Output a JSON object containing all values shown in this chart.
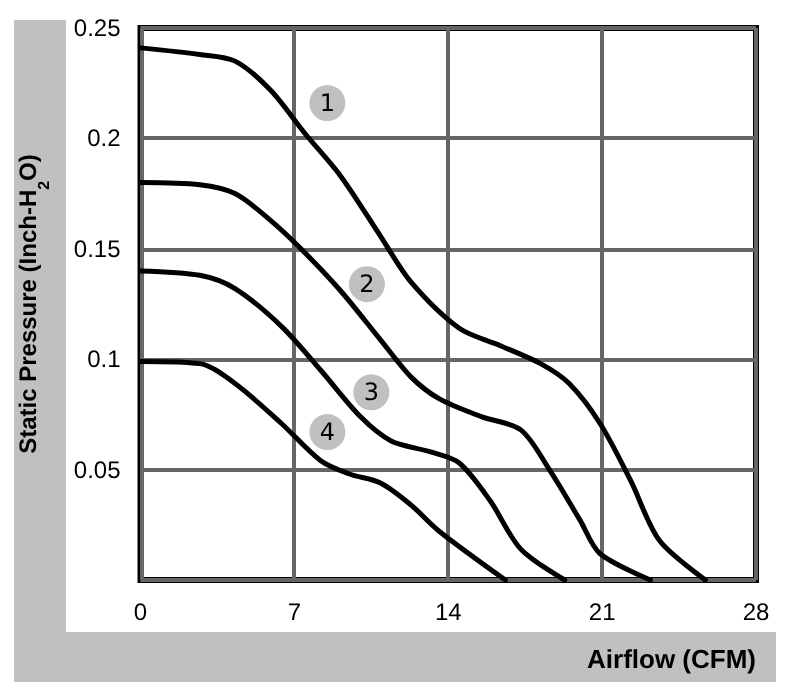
{
  "chart_data": {
    "type": "line",
    "xlabel": "Airflow (CFM)",
    "ylabel": "Static Pressure (Inch-H$_{2}$O)",
    "xlim": [
      0,
      28
    ],
    "xticks": [
      0,
      7,
      14,
      21,
      28
    ],
    "ylim": [
      0,
      0.25
    ],
    "yticks": [
      {
        "value": 0,
        "label": null
      },
      0.05,
      0.1,
      0.15,
      0.2,
      0.25
    ],
    "grid": true,
    "marker": "none",
    "line_style": "solid",
    "series": [
      {
        "color": "#000000",
        "x": [
          0,
          2.7,
          4.3,
          5.9,
          7.5,
          9.1,
          10.9,
          12.3,
          14.5,
          16.4,
          18.2,
          19.5,
          20.9,
          22.3,
          23.6,
          25.7
        ],
        "values": [
          0.241,
          0.238,
          0.235,
          0.222,
          0.202,
          0.183,
          0.156,
          0.135,
          0.114,
          0.106,
          0.098,
          0.089,
          0.071,
          0.045,
          0.018,
          0
        ]
      },
      {
        "color": "#000000",
        "x": [
          0,
          2.7,
          4.3,
          5.9,
          7.3,
          9.1,
          10.9,
          12.3,
          13.6,
          15.5,
          17.3,
          18.6,
          20,
          20.9,
          23.2
        ],
        "values": [
          0.18,
          0.179,
          0.175,
          0.163,
          0.15,
          0.131,
          0.109,
          0.092,
          0.082,
          0.074,
          0.068,
          0.05,
          0.027,
          0.012,
          0
        ]
      },
      {
        "color": "#000000",
        "x": [
          0,
          2.7,
          4.3,
          6.4,
          8.2,
          10,
          11.4,
          13.2,
          14.5,
          15.9,
          17.3,
          19.3
        ],
        "values": [
          0.14,
          0.138,
          0.132,
          0.115,
          0.095,
          0.074,
          0.063,
          0.058,
          0.053,
          0.036,
          0.014,
          0
        ]
      },
      {
        "color": "#000000",
        "x": [
          0,
          2.7,
          4.3,
          6.4,
          8.2,
          9.5,
          10.9,
          12.3,
          13.6,
          16.6
        ],
        "values": [
          0.099,
          0.098,
          0.089,
          0.071,
          0.054,
          0.048,
          0.044,
          0.034,
          0.022,
          0
        ]
      }
    ],
    "annotations": [
      {
        "text": "1",
        "x": 8.5,
        "y": 0.216
      },
      {
        "text": "2",
        "x": 10.3,
        "y": 0.134
      },
      {
        "text": "3",
        "x": 10.5,
        "y": 0.085
      },
      {
        "text": "4",
        "x": 8.5,
        "y": 0.067
      }
    ]
  }
}
